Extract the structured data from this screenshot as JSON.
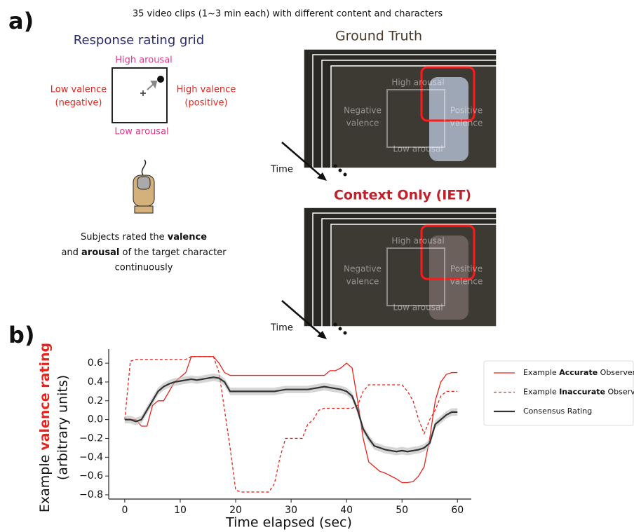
{
  "panel_a": {
    "label": "a)",
    "caption": "35 video clips (1~3 min each) with different content and characters",
    "grid": {
      "title": "Response rating grid",
      "top": "High arousal",
      "left": [
        "Low valence",
        "(negative)"
      ],
      "right": [
        "High valence",
        "(positive)"
      ],
      "bottom": "Low arousal"
    },
    "description": [
      [
        "Subjects rated the ",
        "valence"
      ],
      [
        "and ",
        "arousal",
        " of the target character"
      ],
      [
        "continuously"
      ]
    ],
    "frames": [
      {
        "title": "Ground Truth",
        "time": "Time",
        "overlay": {
          "top": "High arousal",
          "left": [
            "Negative",
            "valence"
          ],
          "right": [
            "Positive",
            "valence"
          ],
          "bottom": "Low arousal"
        }
      },
      {
        "title": "Context Only (IET)",
        "time": "Time",
        "overlay": {
          "top": "High arousal",
          "left": [
            "Negative",
            "valence"
          ],
          "right": [
            "Positive",
            "valence"
          ],
          "bottom": "Low arousal"
        }
      }
    ]
  },
  "panel_b": {
    "label": "b)"
  },
  "chart_data": {
    "type": "line",
    "xlabel": "Time elapsed (sec)",
    "ylabel": {
      "prefix": "Example ",
      "highlight": "valence rating",
      "line2": "(arbitrary units)"
    },
    "x": [
      0,
      1,
      2,
      3,
      4,
      5,
      6,
      7,
      8,
      9,
      10,
      11,
      12,
      13,
      14,
      15,
      16,
      17,
      18,
      19,
      20,
      21,
      22,
      23,
      24,
      25,
      26,
      27,
      28,
      29,
      30,
      31,
      32,
      33,
      34,
      35,
      36,
      37,
      38,
      39,
      40,
      41,
      42,
      43,
      44,
      45,
      46,
      47,
      48,
      49,
      50,
      51,
      52,
      53,
      54,
      55,
      56,
      57,
      58,
      59,
      60
    ],
    "xlim": [
      -2.9,
      62.5
    ],
    "ylim": [
      -0.845,
      0.75
    ],
    "xticks": [
      0,
      10,
      20,
      30,
      40,
      50,
      60
    ],
    "yticks": [
      0.6,
      0.4,
      0.2,
      {
        "value": 0,
        "label": "0.0"
      },
      {
        "value": -0.2,
        "label": "−0.2"
      },
      {
        "value": -0.4,
        "label": "−0.4"
      },
      {
        "value": -0.6,
        "label": "−0.6"
      },
      {
        "value": -0.8,
        "label": "−0.8"
      }
    ],
    "legend": "right",
    "series": [
      {
        "name": [
          "Example ",
          "Accurate",
          " Observer IET"
        ],
        "color": "#e8231c",
        "dash": false,
        "values": [
          0,
          0,
          0,
          -0.07,
          -0.07,
          0.15,
          0.2,
          0.2,
          0.3,
          0.4,
          0.45,
          0.5,
          0.67,
          0.67,
          0.67,
          0.67,
          0.67,
          0.6,
          0.5,
          0.47,
          0.47,
          0.47,
          0.47,
          0.47,
          0.47,
          0.47,
          0.47,
          0.47,
          0.47,
          0.47,
          0.47,
          0.47,
          0.47,
          0.47,
          0.47,
          0.47,
          0.47,
          0.52,
          0.52,
          0.55,
          0.6,
          0.55,
          0.2,
          -0.2,
          -0.45,
          -0.5,
          -0.55,
          -0.57,
          -0.6,
          -0.63,
          -0.67,
          -0.67,
          -0.66,
          -0.6,
          -0.5,
          -0.2,
          0.2,
          0.4,
          0.48,
          0.5,
          0.5
        ]
      },
      {
        "name": [
          "Example ",
          "Inaccurate",
          " Observer IET"
        ],
        "color": "#e8231c",
        "dash": true,
        "values": [
          0,
          0.62,
          0.64,
          0.64,
          0.64,
          0.64,
          0.64,
          0.64,
          0.64,
          0.64,
          0.64,
          0.64,
          0.67,
          0.67,
          0.67,
          0.67,
          0.67,
          0.5,
          0.1,
          -0.3,
          -0.75,
          -0.77,
          -0.77,
          -0.77,
          -0.77,
          -0.77,
          -0.77,
          -0.68,
          -0.4,
          -0.2,
          -0.2,
          -0.2,
          -0.2,
          -0.05,
          0,
          0.1,
          0.12,
          0.12,
          0.12,
          0.12,
          0.12,
          0.12,
          0.15,
          0.3,
          0.37,
          0.37,
          0.37,
          0.37,
          0.37,
          0.37,
          0.37,
          0.3,
          0.2,
          0,
          -0.15,
          0,
          0.1,
          0.25,
          0.3,
          0.3,
          0.3
        ]
      },
      {
        "name": [
          "Consensus Rating"
        ],
        "color": "#333333",
        "dash": false,
        "error": 0.04,
        "values": [
          0,
          0,
          -0.02,
          0,
          0.1,
          0.2,
          0.3,
          0.35,
          0.38,
          0.4,
          0.41,
          0.42,
          0.43,
          0.42,
          0.43,
          0.44,
          0.45,
          0.44,
          0.4,
          0.3,
          0.3,
          0.3,
          0.3,
          0.3,
          0.3,
          0.3,
          0.3,
          0.3,
          0.31,
          0.32,
          0.32,
          0.32,
          0.32,
          0.32,
          0.33,
          0.34,
          0.35,
          0.34,
          0.33,
          0.32,
          0.3,
          0.25,
          0.1,
          -0.1,
          -0.2,
          -0.28,
          -0.3,
          -0.32,
          -0.33,
          -0.34,
          -0.33,
          -0.34,
          -0.33,
          -0.32,
          -0.3,
          -0.25,
          -0.05,
          0,
          0.05,
          0.08,
          0.08
        ]
      }
    ]
  }
}
